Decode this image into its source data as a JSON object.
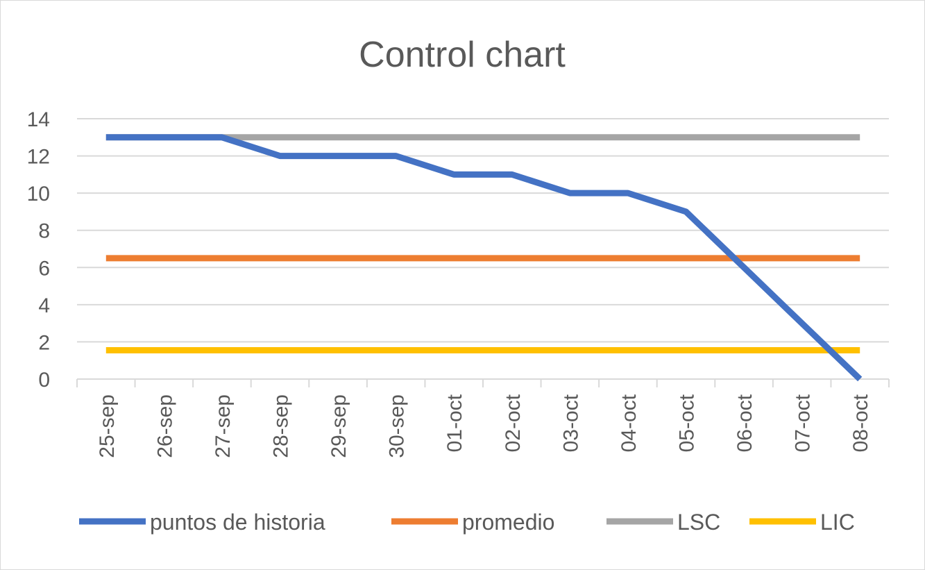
{
  "chart_data": {
    "type": "line",
    "title": "Control chart",
    "xlabel": "",
    "ylabel": "",
    "ylim": [
      0,
      14
    ],
    "yticks": [
      0,
      2,
      4,
      6,
      8,
      10,
      12,
      14
    ],
    "grid": true,
    "legend_position": "bottom",
    "categories": [
      "25-sep",
      "26-sep",
      "27-sep",
      "28-sep",
      "29-sep",
      "30-sep",
      "01-oct",
      "02-oct",
      "03-oct",
      "04-oct",
      "05-oct",
      "06-oct",
      "07-oct",
      "08-oct"
    ],
    "series": [
      {
        "name": "puntos de historia",
        "color": "#4472c4",
        "values": [
          13,
          13,
          13,
          12,
          12,
          12,
          11,
          11,
          10,
          10,
          9,
          6,
          3,
          0
        ]
      },
      {
        "name": "promedio",
        "color": "#ed7d31",
        "values": [
          6.5,
          6.5,
          6.5,
          6.5,
          6.5,
          6.5,
          6.5,
          6.5,
          6.5,
          6.5,
          6.5,
          6.5,
          6.5,
          6.5
        ]
      },
      {
        "name": "LSC",
        "color": "#a5a5a5",
        "values": [
          13,
          13,
          13,
          13,
          13,
          13,
          13,
          13,
          13,
          13,
          13,
          13,
          13,
          13
        ]
      },
      {
        "name": "LIC",
        "color": "#ffc000",
        "values": [
          1.55,
          1.55,
          1.55,
          1.55,
          1.55,
          1.55,
          1.55,
          1.55,
          1.55,
          1.55,
          1.55,
          1.55,
          1.55,
          1.55
        ]
      }
    ]
  }
}
